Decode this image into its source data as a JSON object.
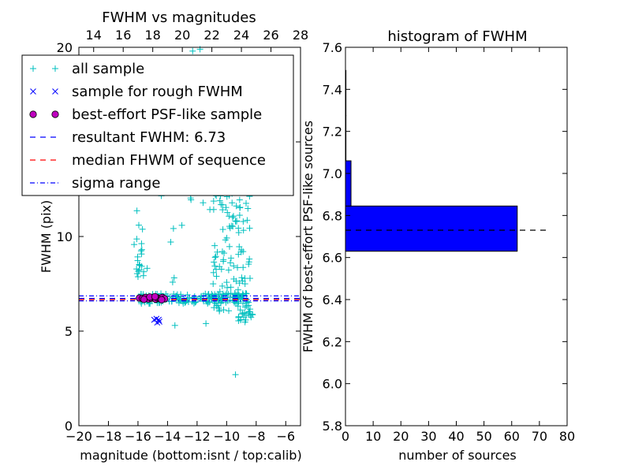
{
  "chart_data": [
    {
      "type": "scatter",
      "title": "FWHM vs magnitudes",
      "xlabel": "magnitude (bottom:isnt / top:calib)",
      "ylabel": "FWHM (pix)",
      "xlim": [
        -20,
        -5
      ],
      "ylim": [
        0,
        20
      ],
      "xticks": [
        "−20",
        "−18",
        "−16",
        "−14",
        "−12",
        "−10",
        "−8",
        "−6"
      ],
      "xticks_top": [
        "14",
        "16",
        "18",
        "20",
        "22",
        "24",
        "26",
        "28"
      ],
      "top_xlim": [
        13,
        28
      ],
      "yticks": [
        "0",
        "5",
        "10",
        "15",
        "20"
      ],
      "grid": false,
      "legend_position": "top-left",
      "legend": [
        {
          "label": "all sample",
          "marker": "plus",
          "color": "#00bfbf"
        },
        {
          "label": "sample for rough FWHM",
          "marker": "x",
          "color": "#0000ff"
        },
        {
          "label": "best-effort PSF-like sample",
          "marker": "circle",
          "color": "#bf00bf"
        },
        {
          "label": "resultant FWHM: 6.73",
          "line": "dashed",
          "color": "#0000ff"
        },
        {
          "label": "median FHWM of sequence",
          "line": "dashed",
          "color": "#ff0000"
        },
        {
          "label": "sigma range",
          "line": "dashdot",
          "color": "#0000ff"
        }
      ],
      "lines": {
        "resultant_fwhm": 6.73,
        "median_fwhm_sequence": 6.67,
        "sigma_range": [
          6.6,
          6.86
        ]
      },
      "series": [
        {
          "name": "sample for rough FWHM",
          "points": [
            [
              -14.9,
              5.6
            ],
            [
              -14.75,
              5.65
            ],
            [
              -14.7,
              5.45
            ],
            [
              -14.55,
              5.5
            ],
            [
              -14.6,
              5.6
            ]
          ]
        },
        {
          "name": "best-effort PSF-like sample",
          "points": [
            [
              -15.9,
              6.75
            ],
            [
              -15.7,
              6.72
            ],
            [
              -15.5,
              6.78
            ],
            [
              -15.3,
              6.7
            ],
            [
              -15.1,
              6.74
            ],
            [
              -14.95,
              6.76
            ],
            [
              -14.8,
              6.69
            ],
            [
              -14.65,
              6.75
            ],
            [
              -14.5,
              6.72
            ],
            [
              -14.35,
              6.78
            ],
            [
              -14.2,
              6.71
            ],
            [
              -15.6,
              6.68
            ],
            [
              -15.2,
              6.8
            ],
            [
              -14.85,
              6.82
            ],
            [
              -14.4,
              6.66
            ]
          ]
        }
      ]
    },
    {
      "type": "bar",
      "orientation": "horizontal",
      "title": "histogram of FWHM",
      "xlabel": "number of sources",
      "ylabel": "FWHM of best-effort PSF-like sources",
      "xlim": [
        0,
        80
      ],
      "ylim": [
        5.8,
        7.6
      ],
      "xticks": [
        "0",
        "10",
        "20",
        "30",
        "40",
        "50",
        "60",
        "70",
        "80"
      ],
      "yticks": [
        "5.8",
        "6.0",
        "6.2",
        "6.4",
        "6.6",
        "6.8",
        "7.0",
        "7.2",
        "7.4",
        "7.6"
      ],
      "bins": [
        {
          "from": 6.63,
          "to": 6.845,
          "count": 62
        },
        {
          "from": 6.845,
          "to": 7.06,
          "count": 2
        },
        {
          "from": 7.06,
          "to": 7.275,
          "count": 0
        },
        {
          "from": 7.275,
          "to": 7.49,
          "count": 0
        }
      ],
      "color": "#0000ff",
      "reference_line": 6.73
    }
  ]
}
